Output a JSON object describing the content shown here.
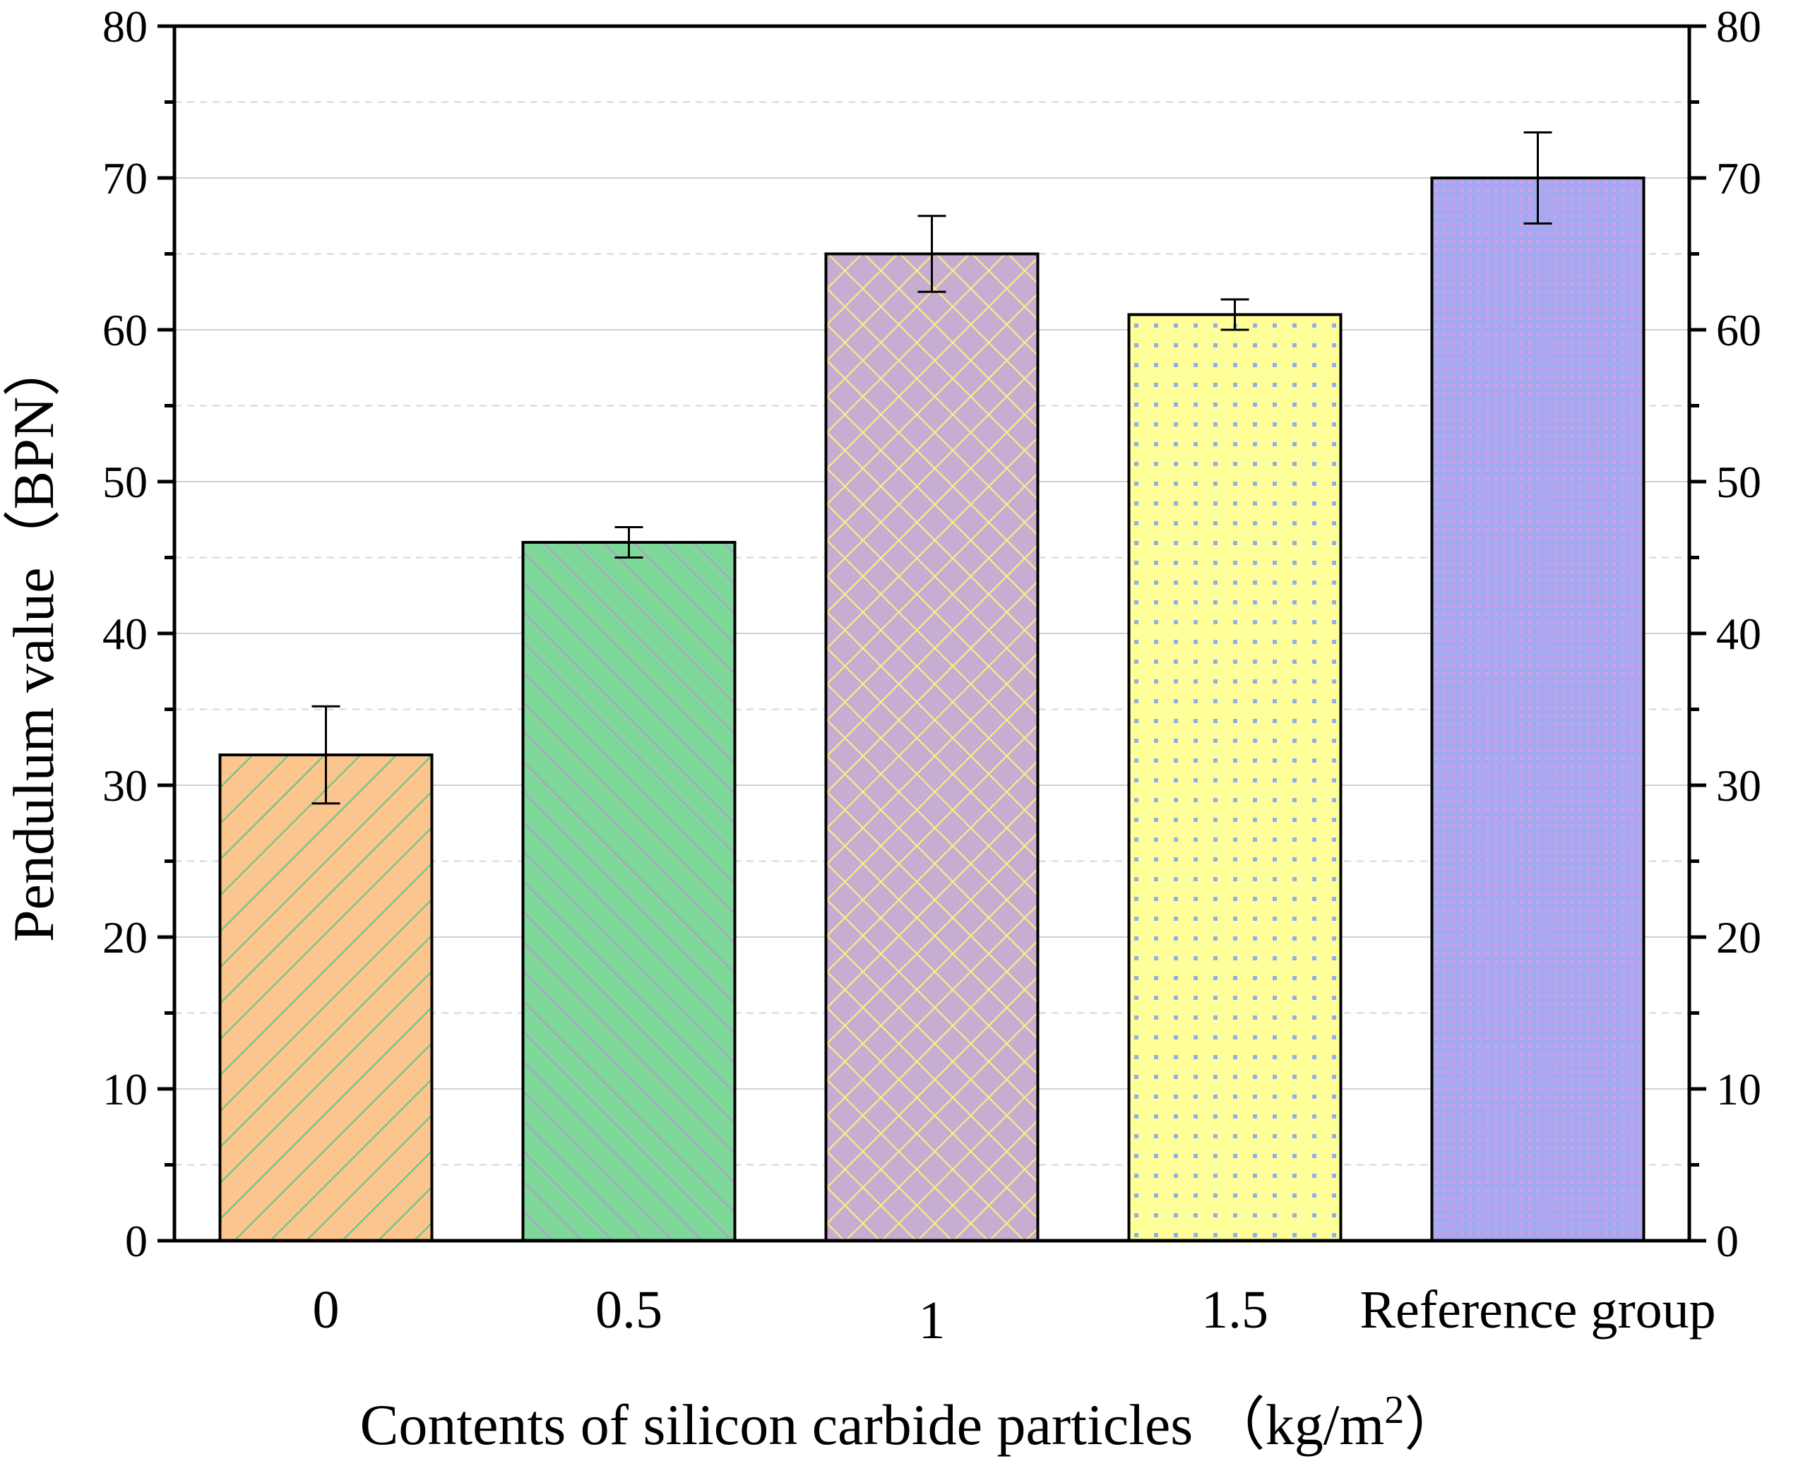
{
  "chart_data": {
    "type": "bar",
    "title": "",
    "xlabel": "Contents of silicon carbide particles （kg/m",
    "xlabel_superscript": "2",
    "xlabel_suffix": "）",
    "ylabel": "Pendulum value（BPN）",
    "ylim": [
      0,
      80
    ],
    "y_major_ticks": [
      0,
      10,
      20,
      30,
      40,
      50,
      60,
      70,
      80
    ],
    "y_minor_ticks": [
      5,
      15,
      25,
      35,
      45,
      55,
      65,
      75
    ],
    "secondary_y_axis": true,
    "grid": true,
    "legend": "none",
    "categories": [
      "0",
      "0.5",
      "1",
      "1.5",
      "Reference group"
    ],
    "values": [
      32,
      46,
      65,
      61,
      70
    ],
    "error_low": [
      28.8,
      45.0,
      62.5,
      60.0,
      67.0
    ],
    "error_high": [
      35.2,
      47.0,
      67.5,
      62.0,
      73.0
    ],
    "bar_colors": [
      "#FBC58E",
      "#7ED89A",
      "#C8ADD2",
      "#FFFF99",
      "#A6A9F2"
    ],
    "bar_patterns": [
      "diagonal-up",
      "diagonal-down",
      "crosshatch",
      "dots",
      "fine-dots"
    ],
    "pattern_colors": [
      "#5CC58A",
      "#B39BC9",
      "#FFF07A",
      "#8FB0F0",
      "#E39BD8"
    ]
  }
}
